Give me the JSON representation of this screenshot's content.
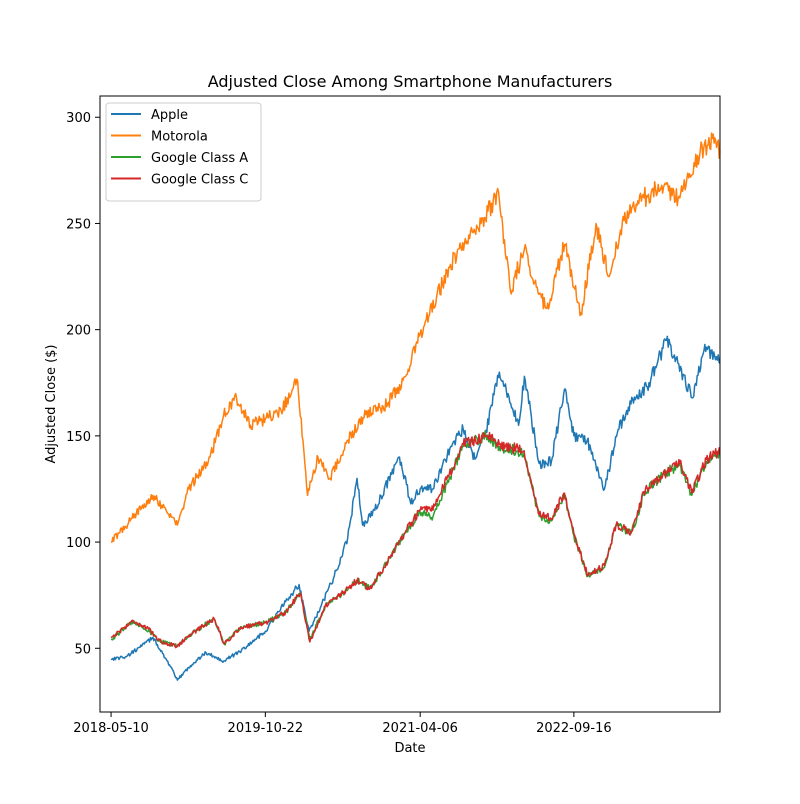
{
  "chart_data": {
    "type": "line",
    "title": "Adjusted Close Among Smartphone Manufacturers",
    "xlabel": "Date",
    "ylabel": "Adjusted Close ($)",
    "x_range": [
      "2018-04-02",
      "2024-01-31"
    ],
    "ylim": [
      20,
      310
    ],
    "x_ticks": [
      "2018-05-10",
      "2019-10-22",
      "2021-04-06",
      "2022-09-16"
    ],
    "y_ticks": [
      50,
      100,
      150,
      200,
      250,
      300
    ],
    "grid": false,
    "legend_position": "upper-left",
    "series": [
      {
        "name": "Apple",
        "color": "#1f77b4",
        "points": [
          [
            "2018-05-10",
            45
          ],
          [
            "2018-07-01",
            46
          ],
          [
            "2018-09-01",
            52
          ],
          [
            "2018-10-01",
            55
          ],
          [
            "2018-11-15",
            45
          ],
          [
            "2018-12-24",
            35
          ],
          [
            "2019-02-01",
            41
          ],
          [
            "2019-04-01",
            48
          ],
          [
            "2019-06-01",
            44
          ],
          [
            "2019-08-01",
            49
          ],
          [
            "2019-10-22",
            58
          ],
          [
            "2019-12-31",
            72
          ],
          [
            "2020-02-15",
            80
          ],
          [
            "2020-03-20",
            58
          ],
          [
            "2020-05-01",
            70
          ],
          [
            "2020-06-15",
            84
          ],
          [
            "2020-07-31",
            102
          ],
          [
            "2020-09-01",
            130
          ],
          [
            "2020-09-20",
            108
          ],
          [
            "2020-11-01",
            115
          ],
          [
            "2021-01-25",
            140
          ],
          [
            "2021-03-05",
            118
          ],
          [
            "2021-04-06",
            125
          ],
          [
            "2021-05-20",
            125
          ],
          [
            "2021-07-20",
            145
          ],
          [
            "2021-09-01",
            153
          ],
          [
            "2021-10-05",
            139
          ],
          [
            "2021-11-15",
            150
          ],
          [
            "2022-01-03",
            180
          ],
          [
            "2022-03-10",
            155
          ],
          [
            "2022-03-30",
            178
          ],
          [
            "2022-05-20",
            137
          ],
          [
            "2022-07-01",
            138
          ],
          [
            "2022-08-15",
            172
          ],
          [
            "2022-09-16",
            150
          ],
          [
            "2022-11-01",
            148
          ],
          [
            "2022-12-30",
            125
          ],
          [
            "2023-02-15",
            153
          ],
          [
            "2023-03-31",
            165
          ],
          [
            "2023-06-01",
            175
          ],
          [
            "2023-07-31",
            195
          ],
          [
            "2023-10-30",
            168
          ],
          [
            "2023-12-10",
            193
          ],
          [
            "2024-01-31",
            184
          ]
        ]
      },
      {
        "name": "Motorola",
        "color": "#ff7f0e",
        "points": [
          [
            "2018-05-10",
            100
          ],
          [
            "2018-07-15",
            110
          ],
          [
            "2018-09-01",
            118
          ],
          [
            "2018-10-01",
            122
          ],
          [
            "2018-11-15",
            115
          ],
          [
            "2018-12-24",
            108
          ],
          [
            "2019-02-01",
            125
          ],
          [
            "2019-04-15",
            140
          ],
          [
            "2019-06-01",
            160
          ],
          [
            "2019-07-15",
            168
          ],
          [
            "2019-09-01",
            155
          ],
          [
            "2019-10-22",
            158
          ],
          [
            "2019-12-15",
            162
          ],
          [
            "2020-02-10",
            176
          ],
          [
            "2020-03-15",
            122
          ],
          [
            "2020-04-20",
            140
          ],
          [
            "2020-06-01",
            130
          ],
          [
            "2020-08-01",
            148
          ],
          [
            "2020-10-01",
            160
          ],
          [
            "2020-12-15",
            165
          ],
          [
            "2021-02-15",
            178
          ],
          [
            "2021-04-06",
            198
          ],
          [
            "2021-06-01",
            215
          ],
          [
            "2021-08-15",
            238
          ],
          [
            "2021-11-01",
            250
          ],
          [
            "2021-12-31",
            265
          ],
          [
            "2022-02-10",
            218
          ],
          [
            "2022-03-30",
            238
          ],
          [
            "2022-05-10",
            220
          ],
          [
            "2022-06-15",
            210
          ],
          [
            "2022-08-15",
            240
          ],
          [
            "2022-09-16",
            220
          ],
          [
            "2022-10-10",
            208
          ],
          [
            "2022-12-01",
            250
          ],
          [
            "2023-01-15",
            225
          ],
          [
            "2023-03-01",
            250
          ],
          [
            "2023-05-15",
            262
          ],
          [
            "2023-07-15",
            268
          ],
          [
            "2023-09-15",
            262
          ],
          [
            "2023-11-15",
            282
          ],
          [
            "2024-01-05",
            290
          ],
          [
            "2024-01-31",
            284
          ]
        ]
      },
      {
        "name": "Google Class A",
        "color": "#2ca02c",
        "points": [
          [
            "2018-05-10",
            54
          ],
          [
            "2018-07-26",
            63
          ],
          [
            "2018-09-15",
            58
          ],
          [
            "2018-10-30",
            53
          ],
          [
            "2018-12-24",
            51
          ],
          [
            "2019-02-01",
            56
          ],
          [
            "2019-04-29",
            64
          ],
          [
            "2019-06-03",
            52
          ],
          [
            "2019-08-01",
            60
          ],
          [
            "2019-10-22",
            62
          ],
          [
            "2019-12-31",
            67
          ],
          [
            "2020-02-19",
            76
          ],
          [
            "2020-03-23",
            54
          ],
          [
            "2020-05-15",
            70
          ],
          [
            "2020-07-15",
            76
          ],
          [
            "2020-09-01",
            82
          ],
          [
            "2020-10-15",
            78
          ],
          [
            "2020-12-01",
            88
          ],
          [
            "2021-02-10",
            104
          ],
          [
            "2021-04-06",
            114
          ],
          [
            "2021-05-20",
            112
          ],
          [
            "2021-07-15",
            130
          ],
          [
            "2021-09-01",
            145
          ],
          [
            "2021-11-18",
            150
          ],
          [
            "2022-01-03",
            145
          ],
          [
            "2022-03-29",
            142
          ],
          [
            "2022-05-20",
            112
          ],
          [
            "2022-07-01",
            110
          ],
          [
            "2022-08-15",
            122
          ],
          [
            "2022-09-16",
            103
          ],
          [
            "2022-11-03",
            84
          ],
          [
            "2022-12-30",
            88
          ],
          [
            "2023-02-08",
            108
          ],
          [
            "2023-03-31",
            104
          ],
          [
            "2023-05-20",
            124
          ],
          [
            "2023-07-31",
            133
          ],
          [
            "2023-09-15",
            136
          ],
          [
            "2023-10-26",
            122
          ],
          [
            "2023-12-15",
            138
          ],
          [
            "2024-01-31",
            142
          ]
        ]
      },
      {
        "name": "Google Class C",
        "color": "#d62728",
        "points": [
          [
            "2018-05-10",
            55
          ],
          [
            "2018-07-26",
            63
          ],
          [
            "2018-09-15",
            59
          ],
          [
            "2018-10-30",
            53
          ],
          [
            "2018-12-24",
            51
          ],
          [
            "2019-02-01",
            56
          ],
          [
            "2019-04-29",
            64
          ],
          [
            "2019-06-03",
            52
          ],
          [
            "2019-08-01",
            60
          ],
          [
            "2019-10-22",
            62
          ],
          [
            "2019-12-31",
            67
          ],
          [
            "2020-02-19",
            76
          ],
          [
            "2020-03-23",
            53
          ],
          [
            "2020-05-15",
            70
          ],
          [
            "2020-07-15",
            76
          ],
          [
            "2020-09-01",
            82
          ],
          [
            "2020-10-15",
            78
          ],
          [
            "2020-12-01",
            88
          ],
          [
            "2021-02-10",
            104
          ],
          [
            "2021-04-06",
            115
          ],
          [
            "2021-05-20",
            115
          ],
          [
            "2021-07-15",
            132
          ],
          [
            "2021-09-01",
            146
          ],
          [
            "2021-11-18",
            150
          ],
          [
            "2022-01-03",
            146
          ],
          [
            "2022-03-29",
            143
          ],
          [
            "2022-05-20",
            113
          ],
          [
            "2022-07-01",
            111
          ],
          [
            "2022-08-15",
            123
          ],
          [
            "2022-09-16",
            104
          ],
          [
            "2022-11-03",
            84
          ],
          [
            "2022-12-30",
            89
          ],
          [
            "2023-02-08",
            108
          ],
          [
            "2023-03-31",
            105
          ],
          [
            "2023-05-20",
            125
          ],
          [
            "2023-07-31",
            133
          ],
          [
            "2023-09-15",
            137
          ],
          [
            "2023-10-26",
            123
          ],
          [
            "2023-12-15",
            139
          ],
          [
            "2024-01-31",
            143
          ]
        ]
      }
    ]
  }
}
